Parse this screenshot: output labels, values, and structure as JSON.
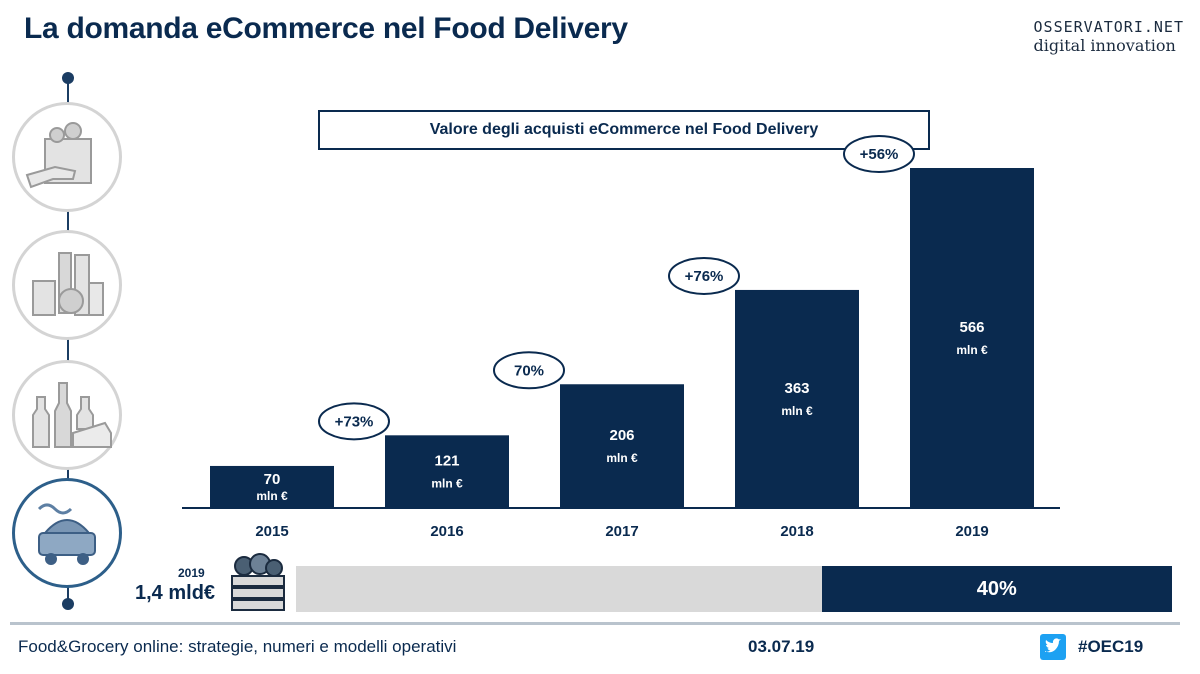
{
  "header": {
    "title": "La domanda eCommerce nel Food Delivery"
  },
  "logo": {
    "line1": "OSSERVATORI.NET",
    "line2": "digital innovation"
  },
  "sidebar": {
    "icons": [
      {
        "name": "grocery-bag-icon",
        "active": false
      },
      {
        "name": "packaged-food-icon",
        "active": false
      },
      {
        "name": "wine-cheese-icon",
        "active": false
      },
      {
        "name": "food-delivery-icon",
        "active": true
      }
    ]
  },
  "chart_data": {
    "type": "bar",
    "title": "Valore degli acquisti eCommerce nel Food Delivery",
    "categories": [
      "2015",
      "2016",
      "2017",
      "2018",
      "2019"
    ],
    "values": [
      70,
      121,
      206,
      363,
      566
    ],
    "unit_label": "mln €",
    "growth_labels": [
      "+73%",
      "70%",
      "+76%",
      "+56%"
    ],
    "bar_color": "#0a2a4f"
  },
  "share": {
    "year": "2019",
    "total": "1,4 mld€",
    "percent": 40,
    "label": "40%"
  },
  "footer": {
    "left": "Food&Grocery online: strategie, numeri e modelli operativi",
    "date": "03.07.19",
    "hashtag": "#OEC19"
  }
}
